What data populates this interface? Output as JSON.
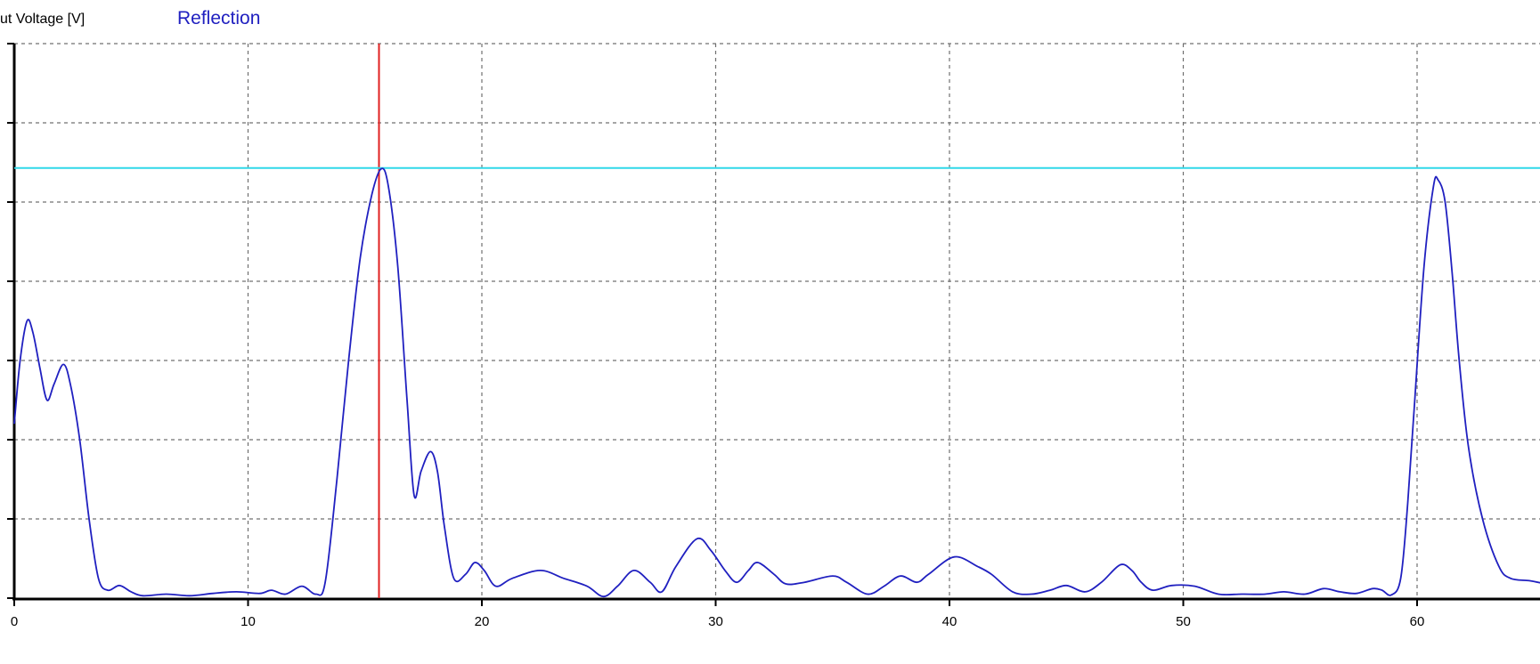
{
  "chart_data": {
    "type": "line",
    "ylabel": "ut Voltage [V]",
    "legend": [
      {
        "name": "Reflection",
        "color": "#2020c0"
      }
    ],
    "xlim": [
      0,
      65.5
    ],
    "ylim": [
      0,
      7
    ],
    "x_ticks": [
      0,
      10,
      20,
      30,
      40,
      50,
      60
    ],
    "x_tick_labels": [
      "0",
      "10",
      "20",
      "30",
      "40",
      "50",
      "60"
    ],
    "y_ticks": [
      0,
      1,
      2,
      3,
      4,
      5,
      6,
      7
    ],
    "grid": true,
    "markers": [
      {
        "kind": "vertical",
        "x": 15.6,
        "color": "#e02020"
      },
      {
        "kind": "horizontal",
        "y": 5.43,
        "color": "#30d8e8"
      }
    ],
    "series": [
      {
        "name": "Reflection",
        "color": "#2020c0",
        "points": [
          [
            0,
            2.2
          ],
          [
            0.25,
            3.0
          ],
          [
            0.55,
            3.5
          ],
          [
            0.8,
            3.35
          ],
          [
            1.1,
            2.9
          ],
          [
            1.4,
            2.5
          ],
          [
            1.7,
            2.7
          ],
          [
            2.1,
            2.95
          ],
          [
            2.4,
            2.7
          ],
          [
            2.8,
            2.0
          ],
          [
            3.2,
            1.0
          ],
          [
            3.6,
            0.25
          ],
          [
            4.0,
            0.1
          ],
          [
            4.5,
            0.16
          ],
          [
            5.0,
            0.08
          ],
          [
            5.5,
            0.03
          ],
          [
            6.5,
            0.05
          ],
          [
            7.5,
            0.03
          ],
          [
            8.5,
            0.06
          ],
          [
            9.5,
            0.08
          ],
          [
            10.5,
            0.06
          ],
          [
            11.0,
            0.1
          ],
          [
            11.6,
            0.05
          ],
          [
            12.3,
            0.15
          ],
          [
            12.9,
            0.05
          ],
          [
            13.3,
            0.2
          ],
          [
            13.8,
            1.5
          ],
          [
            14.3,
            3.0
          ],
          [
            14.8,
            4.3
          ],
          [
            15.3,
            5.1
          ],
          [
            15.7,
            5.42
          ],
          [
            16.0,
            5.2
          ],
          [
            16.4,
            4.2
          ],
          [
            16.8,
            2.5
          ],
          [
            17.1,
            1.3
          ],
          [
            17.4,
            1.6
          ],
          [
            17.8,
            1.85
          ],
          [
            18.1,
            1.6
          ],
          [
            18.4,
            0.9
          ],
          [
            18.8,
            0.25
          ],
          [
            19.3,
            0.3
          ],
          [
            19.7,
            0.45
          ],
          [
            20.1,
            0.35
          ],
          [
            20.6,
            0.15
          ],
          [
            21.3,
            0.25
          ],
          [
            22.5,
            0.35
          ],
          [
            23.5,
            0.25
          ],
          [
            24.5,
            0.15
          ],
          [
            25.2,
            0.02
          ],
          [
            25.8,
            0.15
          ],
          [
            26.5,
            0.35
          ],
          [
            27.2,
            0.2
          ],
          [
            27.7,
            0.08
          ],
          [
            28.3,
            0.4
          ],
          [
            29.2,
            0.75
          ],
          [
            29.8,
            0.6
          ],
          [
            30.4,
            0.35
          ],
          [
            30.9,
            0.2
          ],
          [
            31.4,
            0.35
          ],
          [
            31.8,
            0.45
          ],
          [
            32.5,
            0.3
          ],
          [
            33.0,
            0.18
          ],
          [
            33.8,
            0.2
          ],
          [
            35.0,
            0.28
          ],
          [
            35.6,
            0.2
          ],
          [
            36.5,
            0.05
          ],
          [
            37.2,
            0.15
          ],
          [
            37.9,
            0.28
          ],
          [
            38.6,
            0.2
          ],
          [
            39.1,
            0.3
          ],
          [
            40.2,
            0.52
          ],
          [
            41.2,
            0.4
          ],
          [
            41.8,
            0.3
          ],
          [
            42.7,
            0.08
          ],
          [
            43.5,
            0.05
          ],
          [
            44.3,
            0.1
          ],
          [
            45.0,
            0.16
          ],
          [
            45.8,
            0.08
          ],
          [
            46.5,
            0.2
          ],
          [
            47.3,
            0.42
          ],
          [
            47.8,
            0.35
          ],
          [
            48.2,
            0.2
          ],
          [
            48.7,
            0.1
          ],
          [
            49.5,
            0.16
          ],
          [
            50.5,
            0.15
          ],
          [
            51.5,
            0.05
          ],
          [
            52.5,
            0.05
          ],
          [
            53.5,
            0.05
          ],
          [
            54.3,
            0.08
          ],
          [
            55.2,
            0.05
          ],
          [
            56.0,
            0.12
          ],
          [
            56.7,
            0.08
          ],
          [
            57.4,
            0.06
          ],
          [
            58.1,
            0.12
          ],
          [
            58.5,
            0.1
          ],
          [
            58.9,
            0.04
          ],
          [
            59.3,
            0.25
          ],
          [
            59.6,
            1.2
          ],
          [
            59.9,
            2.5
          ],
          [
            60.3,
            4.2
          ],
          [
            60.7,
            5.2
          ],
          [
            60.9,
            5.28
          ],
          [
            61.2,
            5.0
          ],
          [
            61.5,
            4.1
          ],
          [
            61.8,
            3.0
          ],
          [
            62.2,
            1.9
          ],
          [
            62.8,
            1.0
          ],
          [
            63.5,
            0.4
          ],
          [
            64.0,
            0.25
          ],
          [
            64.8,
            0.22
          ],
          [
            65.5,
            0.18
          ]
        ]
      }
    ]
  }
}
